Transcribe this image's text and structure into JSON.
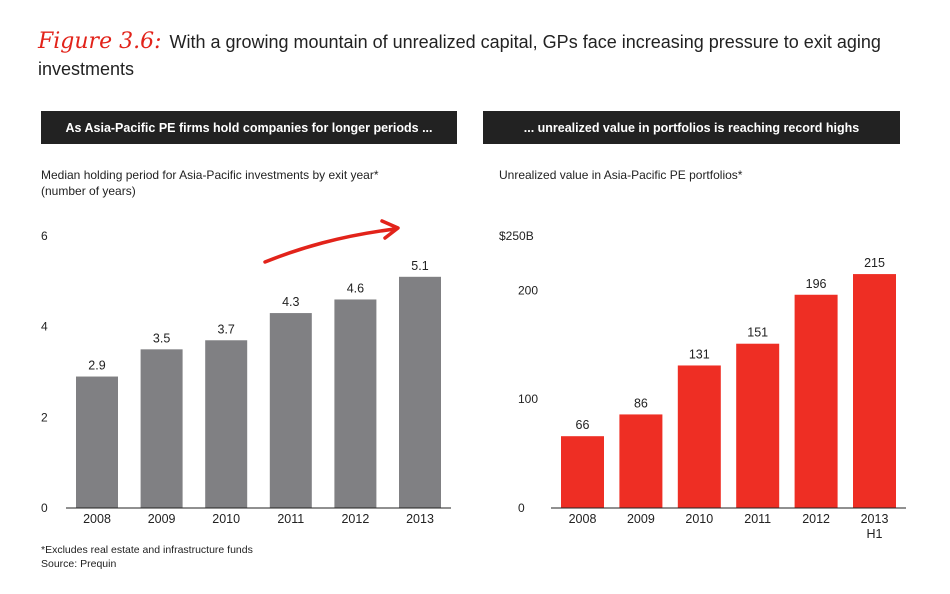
{
  "figure_label": "Figure 3.6:",
  "figure_title": "With a growing mountain of unrealized capital, GPs face increasing pressure to exit aging investments",
  "footnotes": {
    "note": "*Excludes real estate and infrastructure funds",
    "source": "Source: Prequin"
  },
  "colors": {
    "left_bars": "#808083",
    "right_bars": "#ee2e24",
    "banner": "#222222",
    "arrow": "#e2231a"
  },
  "chart_data": [
    {
      "type": "bar",
      "banner": "As Asia-Pacific PE firms hold companies for longer periods ...",
      "title": "Median holding period for Asia-Pacific investments by exit year*",
      "subtitle": "(number of years)",
      "categories": [
        "2008",
        "2009",
        "2010",
        "2011",
        "2012",
        "2013"
      ],
      "values": [
        2.9,
        3.5,
        3.7,
        4.3,
        4.6,
        5.1
      ],
      "value_labels": [
        "2.9",
        "3.5",
        "3.7",
        "4.3",
        "4.6",
        "5.1"
      ],
      "ylim": [
        0,
        6
      ],
      "yticks": [
        0,
        2,
        4,
        6
      ],
      "ytick_labels": [
        "0",
        "2",
        "4",
        "6"
      ],
      "annotation": "upward-trend-arrow"
    },
    {
      "type": "bar",
      "banner": "... unrealized value in portfolios is reaching record highs",
      "title": "Unrealized value in Asia-Pacific PE portfolios*",
      "categories": [
        "2008",
        "2009",
        "2010",
        "2011",
        "2012",
        "2013"
      ],
      "category_sublabels": [
        "",
        "",
        "",
        "",
        "",
        "H1"
      ],
      "values": [
        66,
        86,
        131,
        151,
        196,
        215
      ],
      "value_labels": [
        "66",
        "86",
        "131",
        "151",
        "196",
        "215"
      ],
      "ylim": [
        0,
        250
      ],
      "yticks": [
        0,
        100,
        200,
        250
      ],
      "ytick_labels": [
        "0",
        "100",
        "200",
        "$250B"
      ]
    }
  ]
}
